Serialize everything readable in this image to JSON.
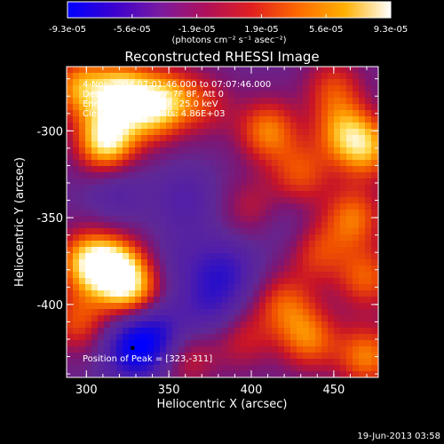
{
  "colorbar": {
    "min_label": "-9.3e-05",
    "ticks": [
      "-9.3e-05",
      "-5.6e-05",
      "-1.9e-05",
      "1.9e-05",
      "5.6e-05",
      "9.3e-05"
    ],
    "unit_label": "(photons cm⁻² s⁻¹ asec⁻²)",
    "stops": [
      "#0000ff",
      "#3a00d0",
      "#7a1aa0",
      "#b0105a",
      "#e02020",
      "#ff6a00",
      "#ffb000",
      "#ffffff"
    ]
  },
  "chart_data": {
    "type": "heatmap",
    "title": "Reconstructed RHESSI Image",
    "xlabel": "Heliocentric X (arcsec)",
    "ylabel": "Heliocentric Y (arcsec)",
    "xlim": [
      288,
      477
    ],
    "ylim": [
      -442,
      -263
    ],
    "xticks": [
      300,
      350,
      400,
      450
    ],
    "yticks": [
      -300,
      -350,
      -400
    ],
    "colorbar_range": [
      -9.3e-05,
      9.3e-05
    ],
    "annotations": [
      "4-Nov-2004 07:01:46.000 to 07:07:46.000",
      "Detectors: 4F 5F 6F 7F 8F, Att 0",
      "Energy Range: 12.0 - 25.0 keV",
      "Clean     Total counts: 4.86E+03"
    ],
    "peak_label": "Position of Peak = [323,-311]",
    "peak_marker": [
      328,
      -425
    ],
    "blobs": [
      {
        "x": 312,
        "y": -306,
        "v": 1.0
      },
      {
        "x": 322,
        "y": -278,
        "v": 0.85
      },
      {
        "x": 340,
        "y": -290,
        "v": 0.55
      },
      {
        "x": 296,
        "y": -275,
        "v": 0.7
      },
      {
        "x": 318,
        "y": -380,
        "v": 0.95
      },
      {
        "x": 300,
        "y": -375,
        "v": 0.75
      },
      {
        "x": 330,
        "y": -395,
        "v": 0.6
      },
      {
        "x": 295,
        "y": -410,
        "v": 0.5
      },
      {
        "x": 350,
        "y": -280,
        "v": 0.5
      },
      {
        "x": 372,
        "y": -285,
        "v": 0.35
      },
      {
        "x": 410,
        "y": -300,
        "v": 0.65
      },
      {
        "x": 430,
        "y": -325,
        "v": 0.5
      },
      {
        "x": 455,
        "y": -300,
        "v": 0.55
      },
      {
        "x": 470,
        "y": -310,
        "v": 0.7
      },
      {
        "x": 462,
        "y": -350,
        "v": 0.6
      },
      {
        "x": 470,
        "y": -385,
        "v": 0.55
      },
      {
        "x": 440,
        "y": -370,
        "v": 0.45
      },
      {
        "x": 420,
        "y": -400,
        "v": 0.5
      },
      {
        "x": 435,
        "y": -420,
        "v": 0.6
      },
      {
        "x": 470,
        "y": -430,
        "v": 0.65
      },
      {
        "x": 395,
        "y": -420,
        "v": 0.35
      },
      {
        "x": 360,
        "y": -430,
        "v": 0.4
      },
      {
        "x": 450,
        "y": -275,
        "v": 0.45
      },
      {
        "x": 400,
        "y": -345,
        "v": 0.3
      },
      {
        "x": 318,
        "y": -335,
        "v": -0.25
      },
      {
        "x": 360,
        "y": -340,
        "v": -0.3
      },
      {
        "x": 385,
        "y": -380,
        "v": -0.45
      },
      {
        "x": 375,
        "y": -400,
        "v": -0.4
      },
      {
        "x": 330,
        "y": -425,
        "v": -0.9
      },
      {
        "x": 345,
        "y": -415,
        "v": -0.5
      },
      {
        "x": 360,
        "y": -375,
        "v": -0.2
      },
      {
        "x": 420,
        "y": -355,
        "v": -0.15
      }
    ]
  },
  "footer": {
    "timestamp": "19-Jun-2013 03:58"
  }
}
